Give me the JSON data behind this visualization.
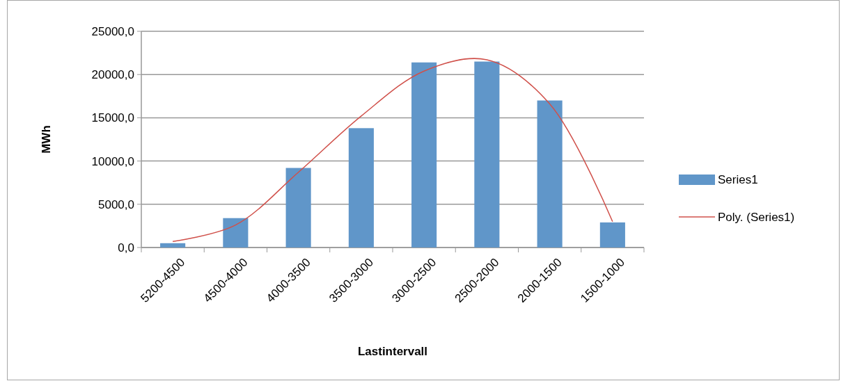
{
  "chart_data": {
    "type": "bar",
    "xlabel": "Lastintervall",
    "ylabel": "MWh",
    "categories": [
      "5200-4500",
      "4500-4000",
      "4000-3500",
      "3500-3000",
      "3000-2500",
      "2500-2000",
      "2000-1500",
      "1500-1000"
    ],
    "series": [
      {
        "name": "Series1",
        "color": "#6096c9",
        "values": [
          500,
          3400,
          9200,
          13800,
          21400,
          21500,
          17000,
          2900
        ]
      },
      {
        "name": "Poly. (Series1)",
        "type": "line",
        "color": "#d0504a",
        "values": [
          700,
          2600,
          8700,
          15200,
          20400,
          21700,
          16600,
          3000
        ]
      }
    ],
    "ylim": [
      0,
      25000
    ],
    "yticks": [
      {
        "value": 0,
        "label": "0,0"
      },
      {
        "value": 5000,
        "label": "5000,0"
      },
      {
        "value": 10000,
        "label": "10000,0"
      },
      {
        "value": 15000,
        "label": "15000,0"
      },
      {
        "value": 20000,
        "label": "20000,0"
      },
      {
        "value": 25000,
        "label": "25000,0"
      }
    ],
    "grid": "y",
    "legend": "right",
    "marker": "none",
    "line_style": "solid"
  }
}
